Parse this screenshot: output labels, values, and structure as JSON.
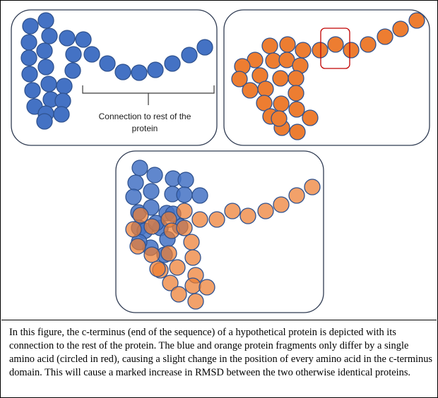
{
  "annotation": {
    "line1": "Connection to rest of the",
    "line2": "protein"
  },
  "caption": "In this figure, the c-terminus (end of the sequence) of a hypothetical protein is depicted with its connection to the rest of the protein. The blue and orange protein fragments only differ by a single amino acid (circled in red), causing a slight change in the position of every amino acid in the c-terminus domain. This will cause a marked increase in RMSD between the two otherwise identical proteins.",
  "colors": {
    "blue_fill": "#4472c4",
    "blue_stroke": "#2f528f",
    "orange_fill": "#ed7d31",
    "orange_stroke": "#2f528f",
    "highlight": "#c00000",
    "panel_border": "#2f3b52"
  }
}
